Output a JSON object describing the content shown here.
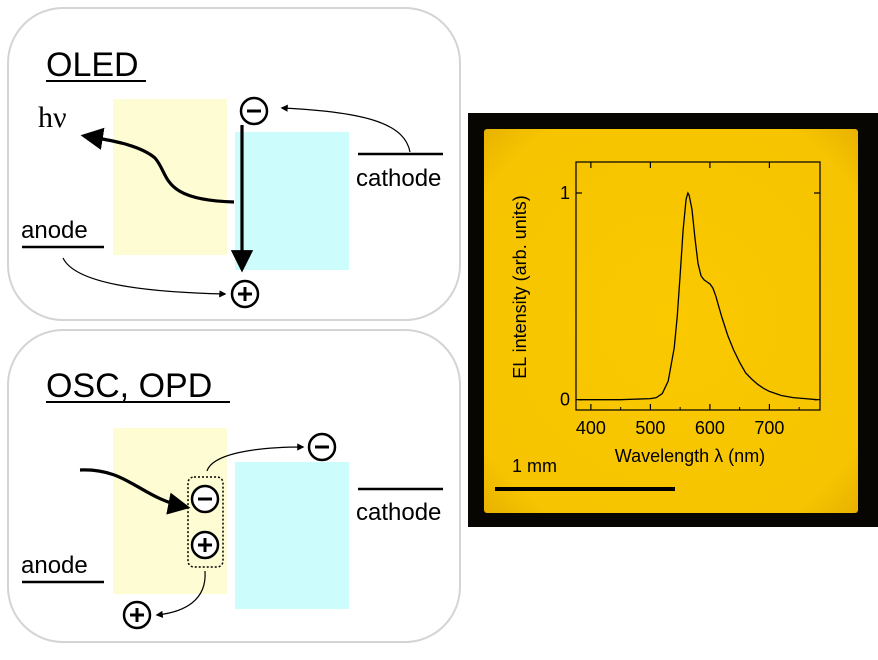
{
  "oled_panel": {
    "title": "OLED",
    "photon_label": "hν",
    "anode_label": "anode",
    "cathode_label": "cathode",
    "electron_symbol": "−",
    "hole_symbol": "+"
  },
  "osc_panel": {
    "title": "OSC, OPD",
    "anode_label": "anode",
    "cathode_label": "cathode",
    "electron_symbol": "−",
    "hole_symbol": "+"
  },
  "photo": {
    "scale_bar_label": "1 mm"
  },
  "chart_data": {
    "type": "line",
    "title": "",
    "xlabel": "Wavelength λ (nm)",
    "ylabel": "EL intensity (arb. units)",
    "xlim": [
      375,
      785
    ],
    "ylim": [
      -0.05,
      1.15
    ],
    "xticks": [
      400,
      500,
      600,
      700
    ],
    "yticks": [
      0,
      1
    ],
    "xticklabels": [
      "400",
      "500",
      "600",
      "700"
    ],
    "yticklabels": [
      "0",
      "1"
    ],
    "grid": false,
    "series": [
      {
        "x": [
          380,
          400,
          450,
          500,
          510,
          520,
          530,
          540,
          545,
          550,
          555,
          560,
          563,
          565,
          570,
          575,
          580,
          585,
          590,
          595,
          600,
          605,
          610,
          615,
          620,
          630,
          640,
          650,
          660,
          670,
          680,
          690,
          700,
          720,
          740,
          760,
          780
        ],
        "values": [
          0,
          0,
          0,
          0.005,
          0.01,
          0.03,
          0.09,
          0.25,
          0.4,
          0.6,
          0.82,
          0.97,
          1.0,
          0.99,
          0.92,
          0.78,
          0.66,
          0.6,
          0.58,
          0.57,
          0.56,
          0.54,
          0.5,
          0.45,
          0.4,
          0.31,
          0.24,
          0.18,
          0.13,
          0.1,
          0.075,
          0.055,
          0.04,
          0.02,
          0.01,
          0.005,
          0
        ]
      }
    ],
    "colors": {
      "line": "#000000",
      "background": "#f7c600"
    }
  },
  "colors": {
    "donor_layer": "#fdfcd2",
    "acceptor_layer": "#ccfcfc",
    "panel_border": "#d4d4d4",
    "photo_frame": "#080602",
    "photo_fill": "#f7c600"
  }
}
